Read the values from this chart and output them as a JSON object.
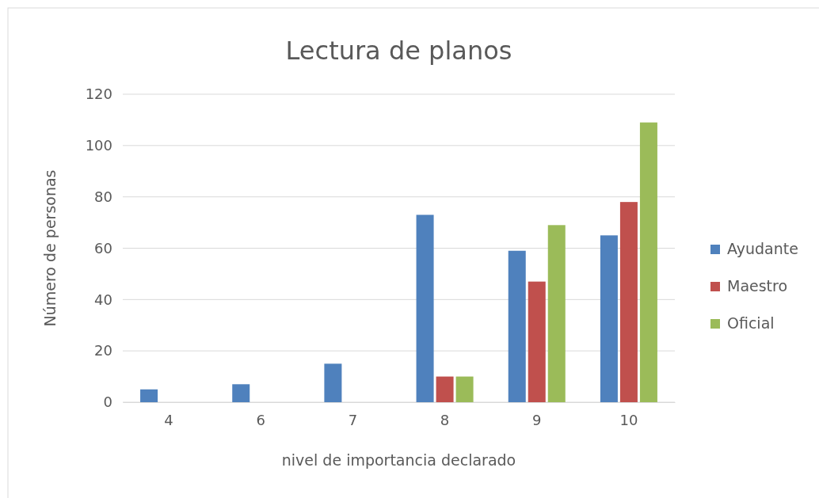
{
  "chart_data": {
    "type": "bar",
    "title": "Lectura de planos",
    "xlabel": "nivel de importancia declarado",
    "ylabel": "Número de personas",
    "categories": [
      "4",
      "6",
      "7",
      "8",
      "9",
      "10"
    ],
    "series": [
      {
        "name": "Ayudante",
        "color": "#4f81bd",
        "values": [
          5,
          7,
          15,
          73,
          59,
          65
        ]
      },
      {
        "name": "Maestro",
        "color": "#c0504d",
        "values": [
          null,
          null,
          null,
          10,
          47,
          78
        ]
      },
      {
        "name": "Oficial",
        "color": "#9bbb59",
        "values": [
          null,
          null,
          null,
          10,
          69,
          109
        ]
      }
    ],
    "ylim": [
      0,
      120
    ],
    "yticks": [
      0,
      20,
      40,
      60,
      80,
      100,
      120
    ],
    "grid": "y",
    "legend": "right"
  }
}
